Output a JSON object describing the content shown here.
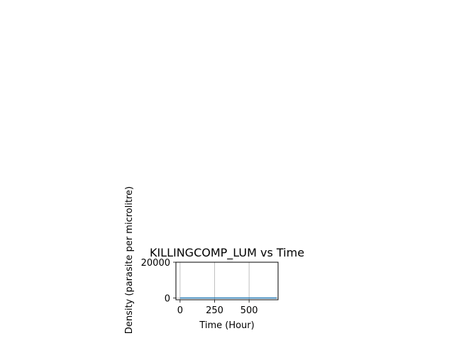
{
  "chart_data": {
    "type": "line",
    "title": "KILLINGCOMP_LUM vs Time",
    "xlabel": "Time (Hour)",
    "ylabel": "Density (parasite per microlitre)",
    "xlim": [
      -30,
      710
    ],
    "ylim": [
      -1000,
      20000
    ],
    "xticks": [
      0,
      250,
      500
    ],
    "xtick_labels": [
      "0",
      "250",
      "500"
    ],
    "yticks": [
      0,
      20000
    ],
    "ytick_labels": [
      "0",
      "20000"
    ],
    "grid": true,
    "legend": "none",
    "series": [
      {
        "color": "#1f77b4",
        "x": [
          0,
          700
        ],
        "y": [
          0,
          0
        ]
      }
    ]
  }
}
